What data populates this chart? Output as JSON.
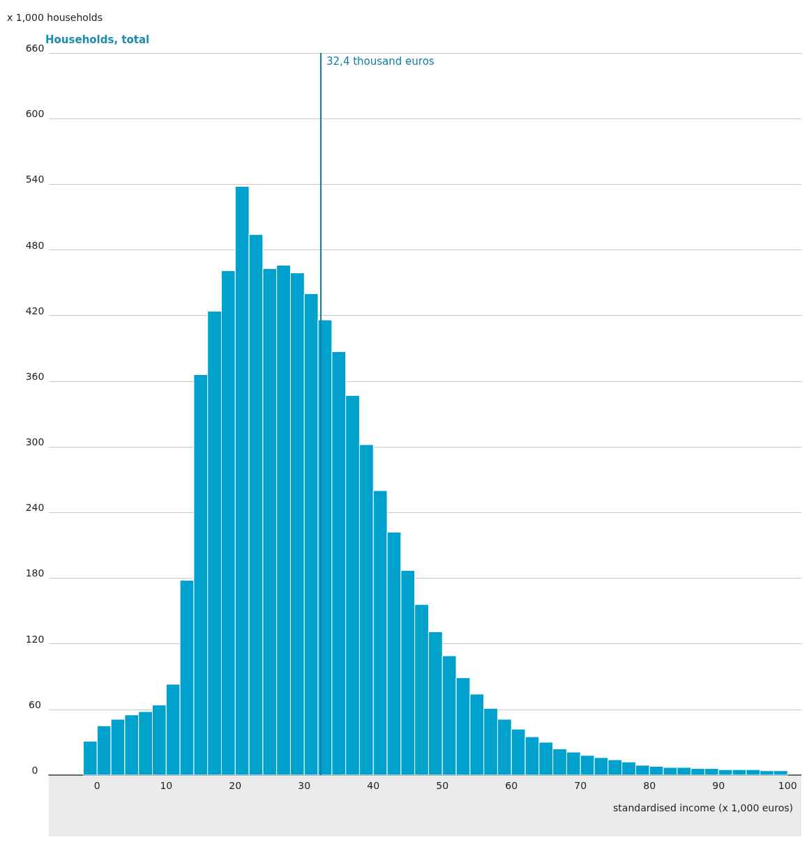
{
  "chart_data": {
    "type": "histogram",
    "title": "Households, total",
    "ylabel": "x 1,000 households",
    "xlabel": "standardised income (x 1,000 euros)",
    "bins": [
      -2,
      0,
      2,
      4,
      6,
      8,
      10,
      12,
      14,
      16,
      18,
      20,
      22,
      24,
      26,
      28,
      30,
      32,
      34,
      36,
      38,
      40,
      42,
      44,
      46,
      48,
      50,
      52,
      54,
      56,
      58,
      60,
      62,
      64,
      66,
      68,
      70,
      72,
      74,
      76,
      78,
      80,
      82,
      84,
      86,
      88,
      90,
      92,
      94,
      96,
      98,
      100
    ],
    "values": [
      31,
      45,
      51,
      55,
      58,
      64,
      83,
      178,
      366,
      424,
      461,
      538,
      494,
      463,
      466,
      459,
      440,
      416,
      387,
      347,
      302,
      260,
      222,
      187,
      156,
      131,
      109,
      89,
      74,
      61,
      51,
      42,
      35,
      30,
      24,
      21,
      18,
      16,
      14,
      12,
      9,
      8,
      7,
      7,
      6,
      6,
      5,
      5,
      5,
      4,
      4
    ],
    "color": "#00a1cd",
    "xlim": [
      -7,
      102
    ],
    "xticks": [
      0,
      10,
      20,
      30,
      40,
      50,
      60,
      70,
      80,
      90,
      100
    ],
    "ylim": [
      0,
      660
    ],
    "yticks": [
      0,
      60,
      120,
      180,
      240,
      300,
      360,
      420,
      480,
      540,
      600,
      660
    ],
    "grid": "y",
    "ref_lines": [
      {
        "axis": "x",
        "value": 32.4,
        "label": "32,4 thousand euros",
        "color": "#0e7ea4"
      }
    ]
  }
}
